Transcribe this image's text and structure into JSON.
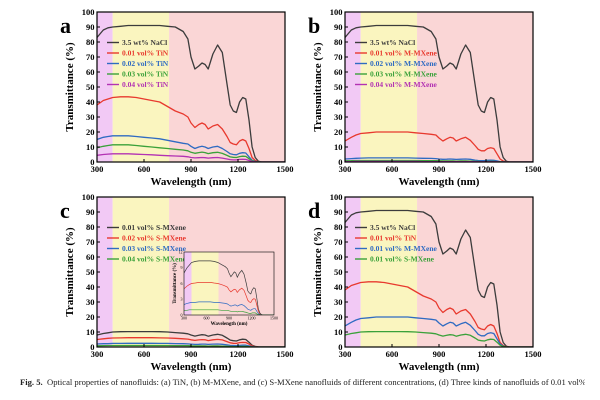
{
  "figure": {
    "caption_label": "Fig. 5.",
    "caption_text": "Optical properties of nanofluids: (a) TiN, (b) M-MXene, and (c) S-MXene nanofluids of different concentrations, (d) Three kinds of nanofluids of 0.01 vol%."
  },
  "colors": {
    "uv_band": "#f2c9f5",
    "visible_band": "#faf5bf",
    "ir_band": "#fad6d6",
    "nacl": "#3c3c3c",
    "red": "#e8392e",
    "blue": "#2f6bc2",
    "green": "#3aa13a",
    "purple": "#b332b3"
  },
  "chart_data": [
    {
      "panel": "a",
      "type": "line",
      "xlabel": "Wavelength (nm)",
      "ylabel": "Transmittance (%)",
      "xlim": [
        300,
        1500
      ],
      "ylim": [
        0,
        100
      ],
      "xticks": [
        "300",
        "600",
        "900",
        "1200",
        "1500"
      ],
      "yticks": [
        "0",
        "10",
        "20",
        "30",
        "40",
        "50",
        "60",
        "70",
        "80",
        "90",
        "100"
      ],
      "legend_position": "top-left",
      "x": [
        300,
        340,
        370,
        400,
        450,
        500,
        550,
        600,
        650,
        700,
        750,
        800,
        850,
        880,
        900,
        925,
        950,
        970,
        990,
        1010,
        1040,
        1070,
        1100,
        1130,
        1150,
        1170,
        1190,
        1210,
        1230,
        1250,
        1270,
        1290,
        1310,
        1330,
        1350,
        1380,
        1420,
        1460,
        1500
      ],
      "series": [
        {
          "name": "3.5 wt%  NaCl",
          "color": "#3c3c3c",
          "values": [
            83,
            88,
            89.5,
            90,
            90.5,
            91,
            91,
            91,
            91,
            91,
            90.5,
            90,
            87,
            82,
            70,
            62,
            64,
            66,
            65,
            62,
            72,
            78,
            73,
            52,
            38,
            34,
            33,
            40,
            43,
            42,
            28,
            10,
            3,
            0.5,
            0,
            0,
            0,
            0,
            0
          ]
        },
        {
          "name": "0.01 vol% TiN",
          "color": "#e8392e",
          "values": [
            38,
            41,
            42,
            43,
            43.5,
            43.5,
            43,
            42,
            41,
            40,
            37,
            34,
            32,
            30,
            26,
            23,
            25,
            26,
            25,
            22,
            24,
            25,
            22,
            17,
            13,
            12,
            11.5,
            14,
            15,
            14,
            9,
            3,
            1,
            0.2,
            0,
            0,
            0,
            0,
            0
          ]
        },
        {
          "name": "0.02 vol% TiN",
          "color": "#2f6bc2",
          "values": [
            15,
            16.5,
            17,
            17.5,
            17.5,
            17.5,
            17,
            16.5,
            16,
            15.5,
            14.5,
            13.5,
            12.5,
            12,
            10.5,
            9,
            10,
            10.5,
            10,
            9,
            10,
            10.5,
            9,
            7,
            5.5,
            5,
            4.8,
            5.8,
            6.2,
            6,
            3.5,
            1.2,
            0.4,
            0.1,
            0,
            0,
            0,
            0,
            0
          ]
        },
        {
          "name": "0.03 vol% TiN",
          "color": "#3aa13a",
          "values": [
            9.5,
            10.5,
            11,
            11.5,
            11.5,
            11.5,
            11,
            10.5,
            10,
            9.5,
            9,
            8.5,
            8,
            7.5,
            6.5,
            5.8,
            6.3,
            6.6,
            6.3,
            5.6,
            6.2,
            6.5,
            5.7,
            4.4,
            3.4,
            3.1,
            3,
            3.6,
            3.9,
            3.7,
            2.2,
            0.8,
            0.3,
            0.1,
            0,
            0,
            0,
            0,
            0
          ]
        },
        {
          "name": "0.04 vol% TiN",
          "color": "#b332b3",
          "values": [
            4.5,
            5,
            5.3,
            5.5,
            5.5,
            5.5,
            5.2,
            5,
            4.8,
            4.5,
            4.2,
            4,
            3.8,
            3.5,
            3,
            2.7,
            2.9,
            3,
            2.9,
            2.6,
            2.9,
            3,
            2.6,
            2,
            1.6,
            1.4,
            1.4,
            1.7,
            1.8,
            1.7,
            1,
            0.4,
            0.1,
            0,
            0,
            0,
            0,
            0,
            0
          ]
        }
      ]
    },
    {
      "panel": "b",
      "type": "line",
      "xlabel": "Wavelength (nm)",
      "ylabel": "Transmittance (%)",
      "xlim": [
        300,
        1500
      ],
      "ylim": [
        0,
        100
      ],
      "xticks": [
        "300",
        "600",
        "900",
        "1200",
        "1500"
      ],
      "yticks": [
        "0",
        "10",
        "20",
        "30",
        "40",
        "50",
        "60",
        "70",
        "80",
        "90",
        "100"
      ],
      "legend_position": "top-left",
      "x": [
        300,
        340,
        370,
        400,
        450,
        500,
        550,
        600,
        650,
        700,
        750,
        800,
        850,
        880,
        900,
        925,
        950,
        970,
        990,
        1010,
        1040,
        1070,
        1100,
        1130,
        1150,
        1170,
        1190,
        1210,
        1230,
        1250,
        1270,
        1290,
        1310,
        1330,
        1350,
        1380,
        1420,
        1460,
        1500
      ],
      "series": [
        {
          "name": "3.5 wt%  NaCl",
          "color": "#3c3c3c",
          "values": [
            83,
            88,
            89.5,
            90,
            90.5,
            91,
            91,
            91,
            91,
            91,
            90.5,
            90,
            87,
            82,
            70,
            62,
            64,
            66,
            65,
            62,
            72,
            78,
            73,
            52,
            38,
            34,
            33,
            40,
            43,
            42,
            28,
            10,
            3,
            0.5,
            0,
            0,
            0,
            0,
            0
          ]
        },
        {
          "name": "0.01 vol% M-MXene",
          "color": "#e8392e",
          "values": [
            14,
            16.5,
            18,
            19,
            19.5,
            20,
            20,
            20,
            20,
            20,
            19.5,
            19,
            18.5,
            18,
            16,
            14,
            15.5,
            16.5,
            16,
            14,
            15.5,
            16.5,
            14.5,
            11,
            8.5,
            7.5,
            7.5,
            9,
            9.5,
            9,
            5.5,
            2,
            0.6,
            0.1,
            0,
            0,
            0,
            0,
            0
          ]
        },
        {
          "name": "0.02 vol% M-MXene",
          "color": "#2f6bc2",
          "values": [
            2,
            2.3,
            2.5,
            2.6,
            2.7,
            2.7,
            2.7,
            2.7,
            2.7,
            2.7,
            2.6,
            2.5,
            2.4,
            2.3,
            2,
            1.8,
            1.9,
            2,
            1.9,
            1.7,
            1.9,
            2,
            1.8,
            1.3,
            1,
            0.9,
            0.9,
            1.1,
            1.2,
            1.1,
            0.7,
            0.3,
            0.1,
            0,
            0,
            0,
            0,
            0,
            0
          ]
        },
        {
          "name": "0.03 vol% M-MXene",
          "color": "#3aa13a",
          "values": [
            0.8,
            0.9,
            1,
            1,
            1,
            1,
            1,
            1,
            1,
            1,
            1,
            0.9,
            0.9,
            0.9,
            0.8,
            0.7,
            0.7,
            0.7,
            0.7,
            0.6,
            0.7,
            0.7,
            0.6,
            0.5,
            0.4,
            0.3,
            0.3,
            0.4,
            0.4,
            0.4,
            0.2,
            0.1,
            0,
            0,
            0,
            0,
            0,
            0,
            0
          ]
        },
        {
          "name": "0.04 vol% M-MXene",
          "color": "#b332b3",
          "values": [
            0.3,
            0.3,
            0.4,
            0.4,
            0.4,
            0.4,
            0.4,
            0.4,
            0.4,
            0.4,
            0.4,
            0.3,
            0.3,
            0.3,
            0.3,
            0.2,
            0.2,
            0.2,
            0.2,
            0.2,
            0.2,
            0.2,
            0.2,
            0.2,
            0.1,
            0.1,
            0.1,
            0.1,
            0.1,
            0.1,
            0.1,
            0,
            0,
            0,
            0,
            0,
            0,
            0,
            0
          ]
        }
      ]
    },
    {
      "panel": "c",
      "type": "line",
      "xlabel": "Wavelength (nm)",
      "ylabel": "Transmittance (%)",
      "xlim": [
        300,
        1500
      ],
      "ylim": [
        0,
        100
      ],
      "xticks": [
        "300",
        "600",
        "900",
        "1200",
        "1500"
      ],
      "yticks": [
        "0",
        "10",
        "20",
        "30",
        "40",
        "50",
        "60",
        "70",
        "80",
        "90",
        "100"
      ],
      "legend_position": "top-left",
      "x": [
        300,
        340,
        370,
        400,
        450,
        500,
        550,
        600,
        650,
        700,
        750,
        800,
        850,
        880,
        900,
        925,
        950,
        970,
        990,
        1010,
        1040,
        1070,
        1100,
        1130,
        1150,
        1170,
        1190,
        1210,
        1230,
        1250,
        1270,
        1290,
        1310,
        1330,
        1350,
        1380,
        1420,
        1460,
        1500
      ],
      "series": [
        {
          "name": "0.01 vol% S-MXene",
          "color": "#3c3c3c",
          "values": [
            8,
            9,
            9.5,
            10,
            10.2,
            10.3,
            10.3,
            10.3,
            10.3,
            10.2,
            10,
            9.6,
            9.2,
            8.8,
            8,
            7.3,
            7.8,
            8.2,
            8,
            7.2,
            8,
            8.5,
            7.8,
            6,
            4.6,
            4.2,
            4,
            4.8,
            5.2,
            5,
            3.2,
            1.2,
            0.4,
            0.1,
            0,
            0,
            0,
            0,
            0
          ]
        },
        {
          "name": "0.02 vol% S-MXene",
          "color": "#e8392e",
          "values": [
            5,
            5.5,
            5.8,
            6,
            6.1,
            6.2,
            6.2,
            6.2,
            6.2,
            6.1,
            6,
            5.8,
            5.5,
            5.3,
            4.8,
            4.4,
            4.7,
            4.9,
            4.8,
            4.3,
            4.8,
            5.1,
            4.7,
            3.6,
            2.8,
            2.5,
            2.4,
            2.9,
            3.1,
            3,
            1.9,
            0.7,
            0.2,
            0,
            0,
            0,
            0,
            0,
            0
          ]
        },
        {
          "name": "0.03 vol% S-MXene",
          "color": "#2f6bc2",
          "values": [
            2,
            2.2,
            2.3,
            2.4,
            2.4,
            2.5,
            2.5,
            2.5,
            2.5,
            2.4,
            2.4,
            2.3,
            2.2,
            2.1,
            1.9,
            1.7,
            1.8,
            1.9,
            1.9,
            1.7,
            1.9,
            2,
            1.8,
            1.4,
            1.1,
            1,
            0.9,
            1.1,
            1.2,
            1.2,
            0.7,
            0.3,
            0.1,
            0,
            0,
            0,
            0,
            0,
            0
          ]
        },
        {
          "name": "0.04 vol% S-MXene",
          "color": "#3aa13a",
          "values": [
            0.8,
            0.9,
            1,
            1,
            1,
            1,
            1,
            1,
            1,
            1,
            1,
            0.9,
            0.9,
            0.9,
            0.8,
            0.7,
            0.7,
            0.7,
            0.7,
            0.6,
            0.7,
            0.7,
            0.6,
            0.5,
            0.4,
            0.3,
            0.3,
            0.4,
            0.4,
            0.4,
            0.2,
            0.1,
            0,
            0,
            0,
            0,
            0,
            0,
            0
          ]
        }
      ],
      "inset": {
        "xlabel": "Wavelength (nm)",
        "ylabel": "Transmittance (%)",
        "xlim": [
          300,
          1500
        ],
        "ylim": [
          0,
          12
        ],
        "xticks": [
          "300",
          "600",
          "900",
          "1200",
          "1500"
        ],
        "yticks": [
          "0",
          "3",
          "6",
          "9",
          "12"
        ]
      }
    },
    {
      "panel": "d",
      "type": "line",
      "xlabel": "Wavelength (nm)",
      "ylabel": "Transmittance (%)",
      "xlim": [
        300,
        1500
      ],
      "ylim": [
        0,
        100
      ],
      "xticks": [
        "300",
        "600",
        "900",
        "1200",
        "1500"
      ],
      "yticks": [
        "0",
        "10",
        "20",
        "30",
        "40",
        "50",
        "60",
        "70",
        "80",
        "90",
        "100"
      ],
      "legend_position": "top-left",
      "x": [
        300,
        340,
        370,
        400,
        450,
        500,
        550,
        600,
        650,
        700,
        750,
        800,
        850,
        880,
        900,
        925,
        950,
        970,
        990,
        1010,
        1040,
        1070,
        1100,
        1130,
        1150,
        1170,
        1190,
        1210,
        1230,
        1250,
        1270,
        1290,
        1310,
        1330,
        1350,
        1380,
        1420,
        1460,
        1500
      ],
      "series": [
        {
          "name": "3.5 wt%  NaCl",
          "color": "#3c3c3c",
          "values": [
            83,
            88,
            89.5,
            90,
            90.5,
            91,
            91,
            91,
            91,
            91,
            90.5,
            90,
            87,
            82,
            70,
            62,
            64,
            66,
            65,
            62,
            72,
            78,
            73,
            52,
            38,
            34,
            33,
            40,
            43,
            42,
            28,
            10,
            3,
            0.5,
            0,
            0,
            0,
            0,
            0
          ]
        },
        {
          "name": "0.01 vol% TiN",
          "color": "#e8392e",
          "values": [
            38,
            41,
            42,
            43,
            43.5,
            43.5,
            43,
            42,
            41,
            40,
            37,
            34,
            32,
            30,
            26,
            23,
            25,
            26,
            25,
            22,
            24,
            25,
            22,
            17,
            13,
            12,
            11.5,
            14,
            15,
            14,
            9,
            3,
            1,
            0.2,
            0,
            0,
            0,
            0,
            0
          ]
        },
        {
          "name": "0.01 vol% M-MXene",
          "color": "#2f6bc2",
          "values": [
            14,
            16.5,
            18,
            19,
            19.5,
            20,
            20,
            20,
            20,
            20,
            19.5,
            19,
            18.5,
            18,
            16,
            14,
            15.5,
            16.5,
            16,
            14,
            15.5,
            16.5,
            14.5,
            11,
            8.5,
            7.5,
            7.5,
            9,
            9.5,
            9,
            5.5,
            2,
            0.6,
            0.1,
            0,
            0,
            0,
            0,
            0
          ]
        },
        {
          "name": "0.01 vol% S-MXene",
          "color": "#3aa13a",
          "values": [
            8,
            9,
            9.5,
            10,
            10.2,
            10.3,
            10.3,
            10.3,
            10.3,
            10.2,
            10,
            9.6,
            9.2,
            8.8,
            8,
            7.3,
            7.8,
            8.2,
            8,
            7.2,
            8,
            8.5,
            7.8,
            6,
            4.6,
            4.2,
            4,
            4.8,
            5.2,
            5,
            3.2,
            1.2,
            0.4,
            0.1,
            0,
            0,
            0,
            0,
            0
          ]
        }
      ]
    }
  ]
}
